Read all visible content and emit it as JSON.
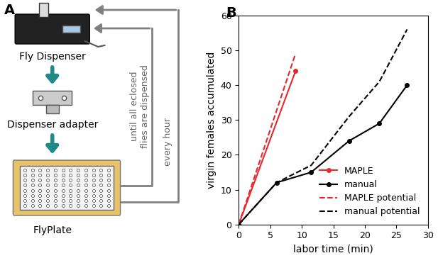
{
  "panel_labels": [
    "A",
    "B"
  ],
  "diagram": {
    "nodes": [
      {
        "label": "Fly Dispenser"
      },
      {
        "label": "Dispenser adapter"
      },
      {
        "label": "FlyPlate"
      }
    ],
    "loops": [
      {
        "label": "until all eclosed\nflies are dispensed"
      },
      {
        "label": "every hour"
      }
    ]
  },
  "chart_data": {
    "type": "line",
    "xlabel": "labor time (min)",
    "ylabel": "virgin females accumulated",
    "xlim": [
      0,
      30
    ],
    "xticks": [
      0,
      5,
      10,
      15,
      20,
      25,
      30
    ],
    "ylim": [
      0,
      60
    ],
    "yticks": [
      0,
      10,
      20,
      30,
      40,
      50,
      60
    ],
    "grid": false,
    "legend": "lower right",
    "series": [
      {
        "name": "MAPLE",
        "color": "#e8262b",
        "line_style": "solid",
        "marker": "circle",
        "x": [
          0,
          9
        ],
        "values": [
          0,
          44
        ]
      },
      {
        "name": "manual",
        "color": "#000000",
        "line_style": "solid",
        "marker": "circle",
        "x": [
          0,
          6,
          11.5,
          17.5,
          22.3,
          26.7
        ],
        "values": [
          0,
          12,
          15,
          24,
          29,
          40
        ]
      },
      {
        "name": "MAPLE potential",
        "color": "#e8262b",
        "line_style": "dashed",
        "marker": "none",
        "x": [
          0,
          9
        ],
        "values": [
          0,
          49
        ]
      },
      {
        "name": "manual potential",
        "color": "#000000",
        "line_style": "dashed",
        "marker": "none",
        "x": [
          0,
          6,
          11.5,
          17.5,
          22.3,
          26.7
        ],
        "values": [
          0,
          12,
          17,
          31,
          41,
          56
        ]
      }
    ]
  }
}
